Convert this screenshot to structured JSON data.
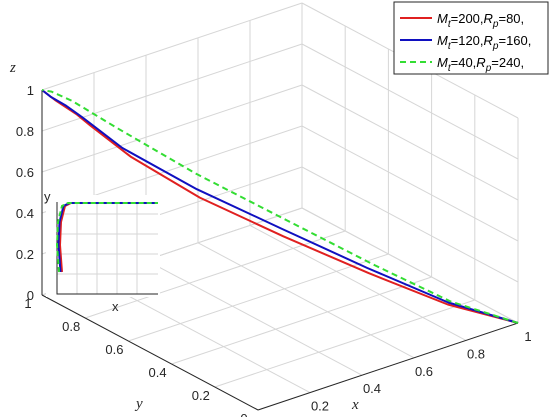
{
  "chart_data": {
    "type": "line",
    "projection": "3d",
    "xlabel": "x",
    "ylabel": "y",
    "zlabel": "z",
    "xlim": [
      0,
      1
    ],
    "ylim": [
      0,
      1
    ],
    "zlim": [
      0,
      1
    ],
    "xticks": [
      "0",
      "0.2",
      "0.4",
      "0.6",
      "0.8",
      "1"
    ],
    "yticks": [
      "0",
      "0.2",
      "0.4",
      "0.6",
      "0.8",
      "1"
    ],
    "zticks": [
      "0",
      "0.2",
      "0.4",
      "0.6",
      "0.8",
      "1"
    ],
    "grid": true,
    "legend_position": "top-right",
    "series": [
      {
        "name_parts": [
          "M",
          "t",
          "=200,",
          "R",
          "p",
          "=80,"
        ],
        "color": "#e02020",
        "style": "solid",
        "points": [
          [
            1,
            0,
            0
          ],
          [
            0.78,
            0.06,
            0.15
          ],
          [
            0.55,
            0.15,
            0.35
          ],
          [
            0.33,
            0.28,
            0.55
          ],
          [
            0.15,
            0.45,
            0.72
          ],
          [
            0.05,
            0.65,
            0.85
          ],
          [
            0.02,
            0.8,
            0.93
          ],
          [
            0.01,
            0.85,
            0.96
          ],
          [
            0,
            0.94,
            0.985
          ],
          [
            0,
            1,
            1
          ]
        ]
      },
      {
        "name_parts": [
          "M",
          "t",
          "=120,",
          "R",
          "p",
          "=160,"
        ],
        "color": "#1010c0",
        "style": "solid",
        "points": [
          [
            1,
            0,
            0
          ],
          [
            0.79,
            0.07,
            0.15
          ],
          [
            0.57,
            0.18,
            0.35
          ],
          [
            0.36,
            0.32,
            0.55
          ],
          [
            0.18,
            0.5,
            0.72
          ],
          [
            0.06,
            0.7,
            0.86
          ],
          [
            0.02,
            0.84,
            0.95
          ],
          [
            0.01,
            0.9,
            0.975
          ],
          [
            0,
            0.96,
            0.99
          ],
          [
            0,
            1,
            1
          ]
        ]
      },
      {
        "name_parts": [
          "M",
          "t",
          "=40,",
          "R",
          "p",
          "=240,"
        ],
        "color": "#33dd33",
        "style": "dashed",
        "points": [
          [
            1,
            0,
            0
          ],
          [
            0.8,
            0.07,
            0.15
          ],
          [
            0.6,
            0.18,
            0.35
          ],
          [
            0.4,
            0.35,
            0.56
          ],
          [
            0.22,
            0.55,
            0.75
          ],
          [
            0.1,
            0.78,
            0.9
          ],
          [
            0.05,
            0.92,
            0.97
          ],
          [
            0.02,
            0.98,
            0.995
          ],
          [
            0,
            1,
            1
          ]
        ]
      }
    ],
    "inset": {
      "xlabel": "x",
      "ylabel": "y",
      "note": "x-y plane projection"
    }
  }
}
